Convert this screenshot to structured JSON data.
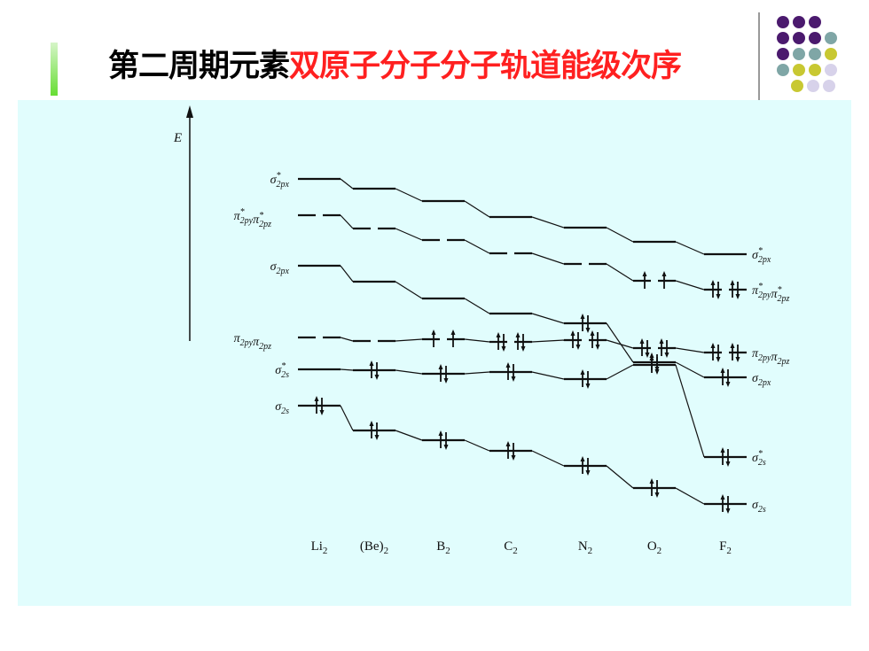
{
  "title": {
    "prefix": "第二周期元素",
    "highlight": "双原子分子分子轨道能级次序"
  },
  "colors": {
    "title_black": "#000000",
    "title_red": "#ff2020",
    "figure_background": "#e1fdfd",
    "accent_bar": "#66dd33",
    "dot_purple": "#4b1a6e",
    "dot_teal": "#7fa6a6",
    "dot_olive": "#c8c832",
    "dot_lavender": "#d7d2ea"
  },
  "decoration": {
    "dot_grid": [
      [
        "purple",
        "purple",
        "purple"
      ],
      [
        "purple",
        "purple",
        "purple",
        "teal"
      ],
      [
        "purple",
        "teal",
        "teal",
        "olive"
      ],
      [
        "teal",
        "olive",
        "olive",
        "lavender"
      ],
      [
        "olive",
        "lavender",
        "lavender"
      ]
    ]
  },
  "diagram": {
    "energy_axis_label": "E",
    "molecules": [
      "Li2",
      "(Be)2",
      "B2",
      "C2",
      "N2",
      "O2",
      "F2"
    ],
    "molecule_labels": [
      {
        "base": "Li",
        "sub": "2"
      },
      {
        "base": "(Be)",
        "sub": "2"
      },
      {
        "base": "B",
        "sub": "2"
      },
      {
        "base": "C",
        "sub": "2"
      },
      {
        "base": "N",
        "sub": "2"
      },
      {
        "base": "O",
        "sub": "2"
      },
      {
        "base": "F",
        "sub": "2"
      }
    ],
    "left_orbital_labels": [
      {
        "greek": "σ",
        "sub": "2px",
        "star": true
      },
      {
        "greek": "π",
        "sub": "2py",
        "star": true,
        "greek2": "π",
        "sub2": "2pz",
        "star2": true
      },
      {
        "greek": "σ",
        "sub": "2px",
        "star": false
      },
      {
        "greek": "π",
        "sub": "2py",
        "star": false,
        "greek2": "π",
        "sub2": "2pz",
        "star2": false
      },
      {
        "greek": "σ",
        "sub": "2s",
        "star": true
      },
      {
        "greek": "σ",
        "sub": "2s",
        "star": false
      }
    ],
    "right_orbital_labels": [
      {
        "greek": "σ",
        "sub": "2px",
        "star": true
      },
      {
        "greek": "π",
        "sub": "2py",
        "star": true,
        "greek2": "π",
        "sub2": "2pz",
        "star2": true
      },
      {
        "greek": "π",
        "sub": "2py",
        "star": false,
        "greek2": "π",
        "sub2": "2pz",
        "star2": false
      },
      {
        "greek": "σ",
        "sub": "2px",
        "star": false
      },
      {
        "greek": "σ",
        "sub": "2s",
        "star": true
      },
      {
        "greek": "σ",
        "sub": "2s",
        "star": false
      }
    ],
    "orbital_order_by_molecule": [
      [
        "σ2s",
        "σ*2s",
        "π2py π2pz",
        "σ2px",
        "π*2py π*2pz",
        "σ*2px"
      ],
      [
        "σ2s",
        "σ*2s",
        "π2py π2pz",
        "σ2px",
        "π*2py π*2pz",
        "σ*2px"
      ],
      [
        "σ2s",
        "σ*2s",
        "π2py π2pz",
        "σ2px",
        "π*2py π*2pz",
        "σ*2px"
      ],
      [
        "σ2s",
        "σ*2s",
        "π2py π2pz",
        "σ2px",
        "π*2py π*2pz",
        "σ*2px"
      ],
      [
        "σ2s",
        "σ*2s",
        "π2py π2pz",
        "σ2px",
        "π*2py π*2pz",
        "σ*2px"
      ],
      [
        "σ2s",
        "σ*2s",
        "σ2px",
        "π2py π2pz",
        "π*2py π*2pz",
        "σ*2px"
      ],
      [
        "σ2s",
        "σ*2s",
        "σ2px",
        "π2py π2pz",
        "π*2py π*2pz",
        "σ*2px"
      ]
    ],
    "electron_counts": {
      "Li2": {
        "σ2s": 2
      },
      "(Be)2": {
        "σ2s": 2,
        "σ*2s": 2
      },
      "B2": {
        "σ2s": 2,
        "σ*2s": 2,
        "π2py": 1,
        "π2pz": 1
      },
      "C2": {
        "σ2s": 2,
        "σ*2s": 2,
        "π2py": 2,
        "π2pz": 2
      },
      "N2": {
        "σ2s": 2,
        "σ*2s": 2,
        "π2py": 2,
        "π2pz": 2,
        "σ2px": 2
      },
      "O2": {
        "σ2s": 2,
        "σ*2s": 2,
        "σ2px": 2,
        "π2py": 2,
        "π2pz": 2,
        "π*2py": 1,
        "π*2pz": 1
      },
      "F2": {
        "σ2s": 2,
        "σ*2s": 2,
        "σ2px": 2,
        "π2py": 2,
        "π2pz": 2,
        "π*2py": 2,
        "π*2pz": 2
      }
    }
  }
}
